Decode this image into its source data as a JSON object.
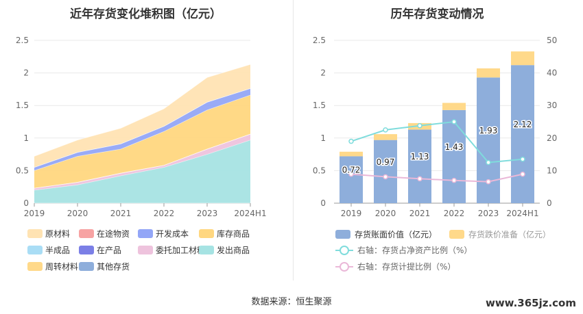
{
  "left_title": "近年存货变化堆积图（亿元）",
  "right_title": "历年存货变动情况",
  "source": "数据来源：恒生聚源",
  "watermark": "www.365jz.com",
  "chart_data": [
    {
      "type": "area",
      "stacked": true,
      "title": "近年存货变化堆积图（亿元）",
      "categories": [
        "2019",
        "2020",
        "2021",
        "2022",
        "2023",
        "2024H1"
      ],
      "ylim": [
        0,
        2.5
      ],
      "yticks": [
        "0",
        "0.5",
        "1",
        "1.5",
        "2",
        "2.5"
      ],
      "grid": true,
      "legend_position": "bottom",
      "series": [
        {
          "name": "其他存货",
          "color": "#8eaedb",
          "values": [
            0,
            0,
            0,
            0,
            0,
            0
          ]
        },
        {
          "name": "周转材料",
          "color": "#ffd98a",
          "values": [
            0,
            0,
            0,
            0,
            0,
            0
          ]
        },
        {
          "name": "发出商品",
          "color": "#a6e3e3",
          "values": [
            0.2,
            0.28,
            0.42,
            0.55,
            0.75,
            0.97
          ]
        },
        {
          "name": "委托加工材料",
          "color": "#eec3dd",
          "values": [
            0.03,
            0.04,
            0.04,
            0.03,
            0.08,
            0.09
          ]
        },
        {
          "name": "在产品",
          "color": "#7b7fe6",
          "values": [
            0,
            0,
            0,
            0,
            0,
            0
          ]
        },
        {
          "name": "半成品",
          "color": "#a9ddf5",
          "values": [
            0,
            0,
            0,
            0,
            0,
            0
          ]
        },
        {
          "name": "库存商品",
          "color": "#ffd780",
          "values": [
            0.27,
            0.4,
            0.37,
            0.52,
            0.6,
            0.6
          ]
        },
        {
          "name": "开发成本",
          "color": "#93a6f7",
          "values": [
            0.05,
            0.06,
            0.08,
            0.08,
            0.12,
            0.1
          ]
        },
        {
          "name": "在途物资",
          "color": "#f7a3a3",
          "values": [
            0,
            0,
            0,
            0,
            0,
            0
          ]
        },
        {
          "name": "原材料",
          "color": "#ffe3b3",
          "values": [
            0.17,
            0.19,
            0.24,
            0.27,
            0.38,
            0.37
          ]
        }
      ],
      "legend_order": [
        "原材料",
        "在途物资",
        "开发成本",
        "库存商品",
        "半成品",
        "在产品",
        "委托加工材料",
        "发出商品",
        "周转材料",
        "其他存货"
      ]
    },
    {
      "type": "bar",
      "title": "历年存货变动情况",
      "categories": [
        "2019",
        "2020",
        "2021",
        "2022",
        "2023",
        "2024H1"
      ],
      "ylim": [
        0,
        2.5
      ],
      "yticks": [
        "0",
        "0.5",
        "1",
        "1.5",
        "2",
        "2.5"
      ],
      "y2lim": [
        0,
        50
      ],
      "y2ticks": [
        "0",
        "10",
        "20",
        "30",
        "40",
        "50"
      ],
      "grid": true,
      "legend_position": "bottom",
      "series": [
        {
          "name": "存货账面价值（亿元）",
          "color": "#8eaedb",
          "values": [
            0.72,
            0.97,
            1.13,
            1.43,
            1.93,
            2.12
          ],
          "labels": [
            "0.72",
            "0.97",
            "1.13",
            "1.43",
            "1.93",
            "2.12"
          ]
        },
        {
          "name": "存货跌价准备（亿元）",
          "color": "#ffd98a",
          "values": [
            0.07,
            0.09,
            0.1,
            0.11,
            0.14,
            0.21
          ]
        },
        {
          "name": "右轴：存货占净资产比例（%）",
          "color": "#7fdcdc",
          "axis": "right",
          "type": "line",
          "values": [
            19,
            22.5,
            23.8,
            25,
            12.5,
            13.5
          ]
        },
        {
          "name": "右轴：存货计提比例（%）",
          "color": "#eab8d8",
          "axis": "right",
          "type": "line",
          "values": [
            8.9,
            8.1,
            7.5,
            7.0,
            6.6,
            8.9
          ]
        }
      ]
    }
  ]
}
